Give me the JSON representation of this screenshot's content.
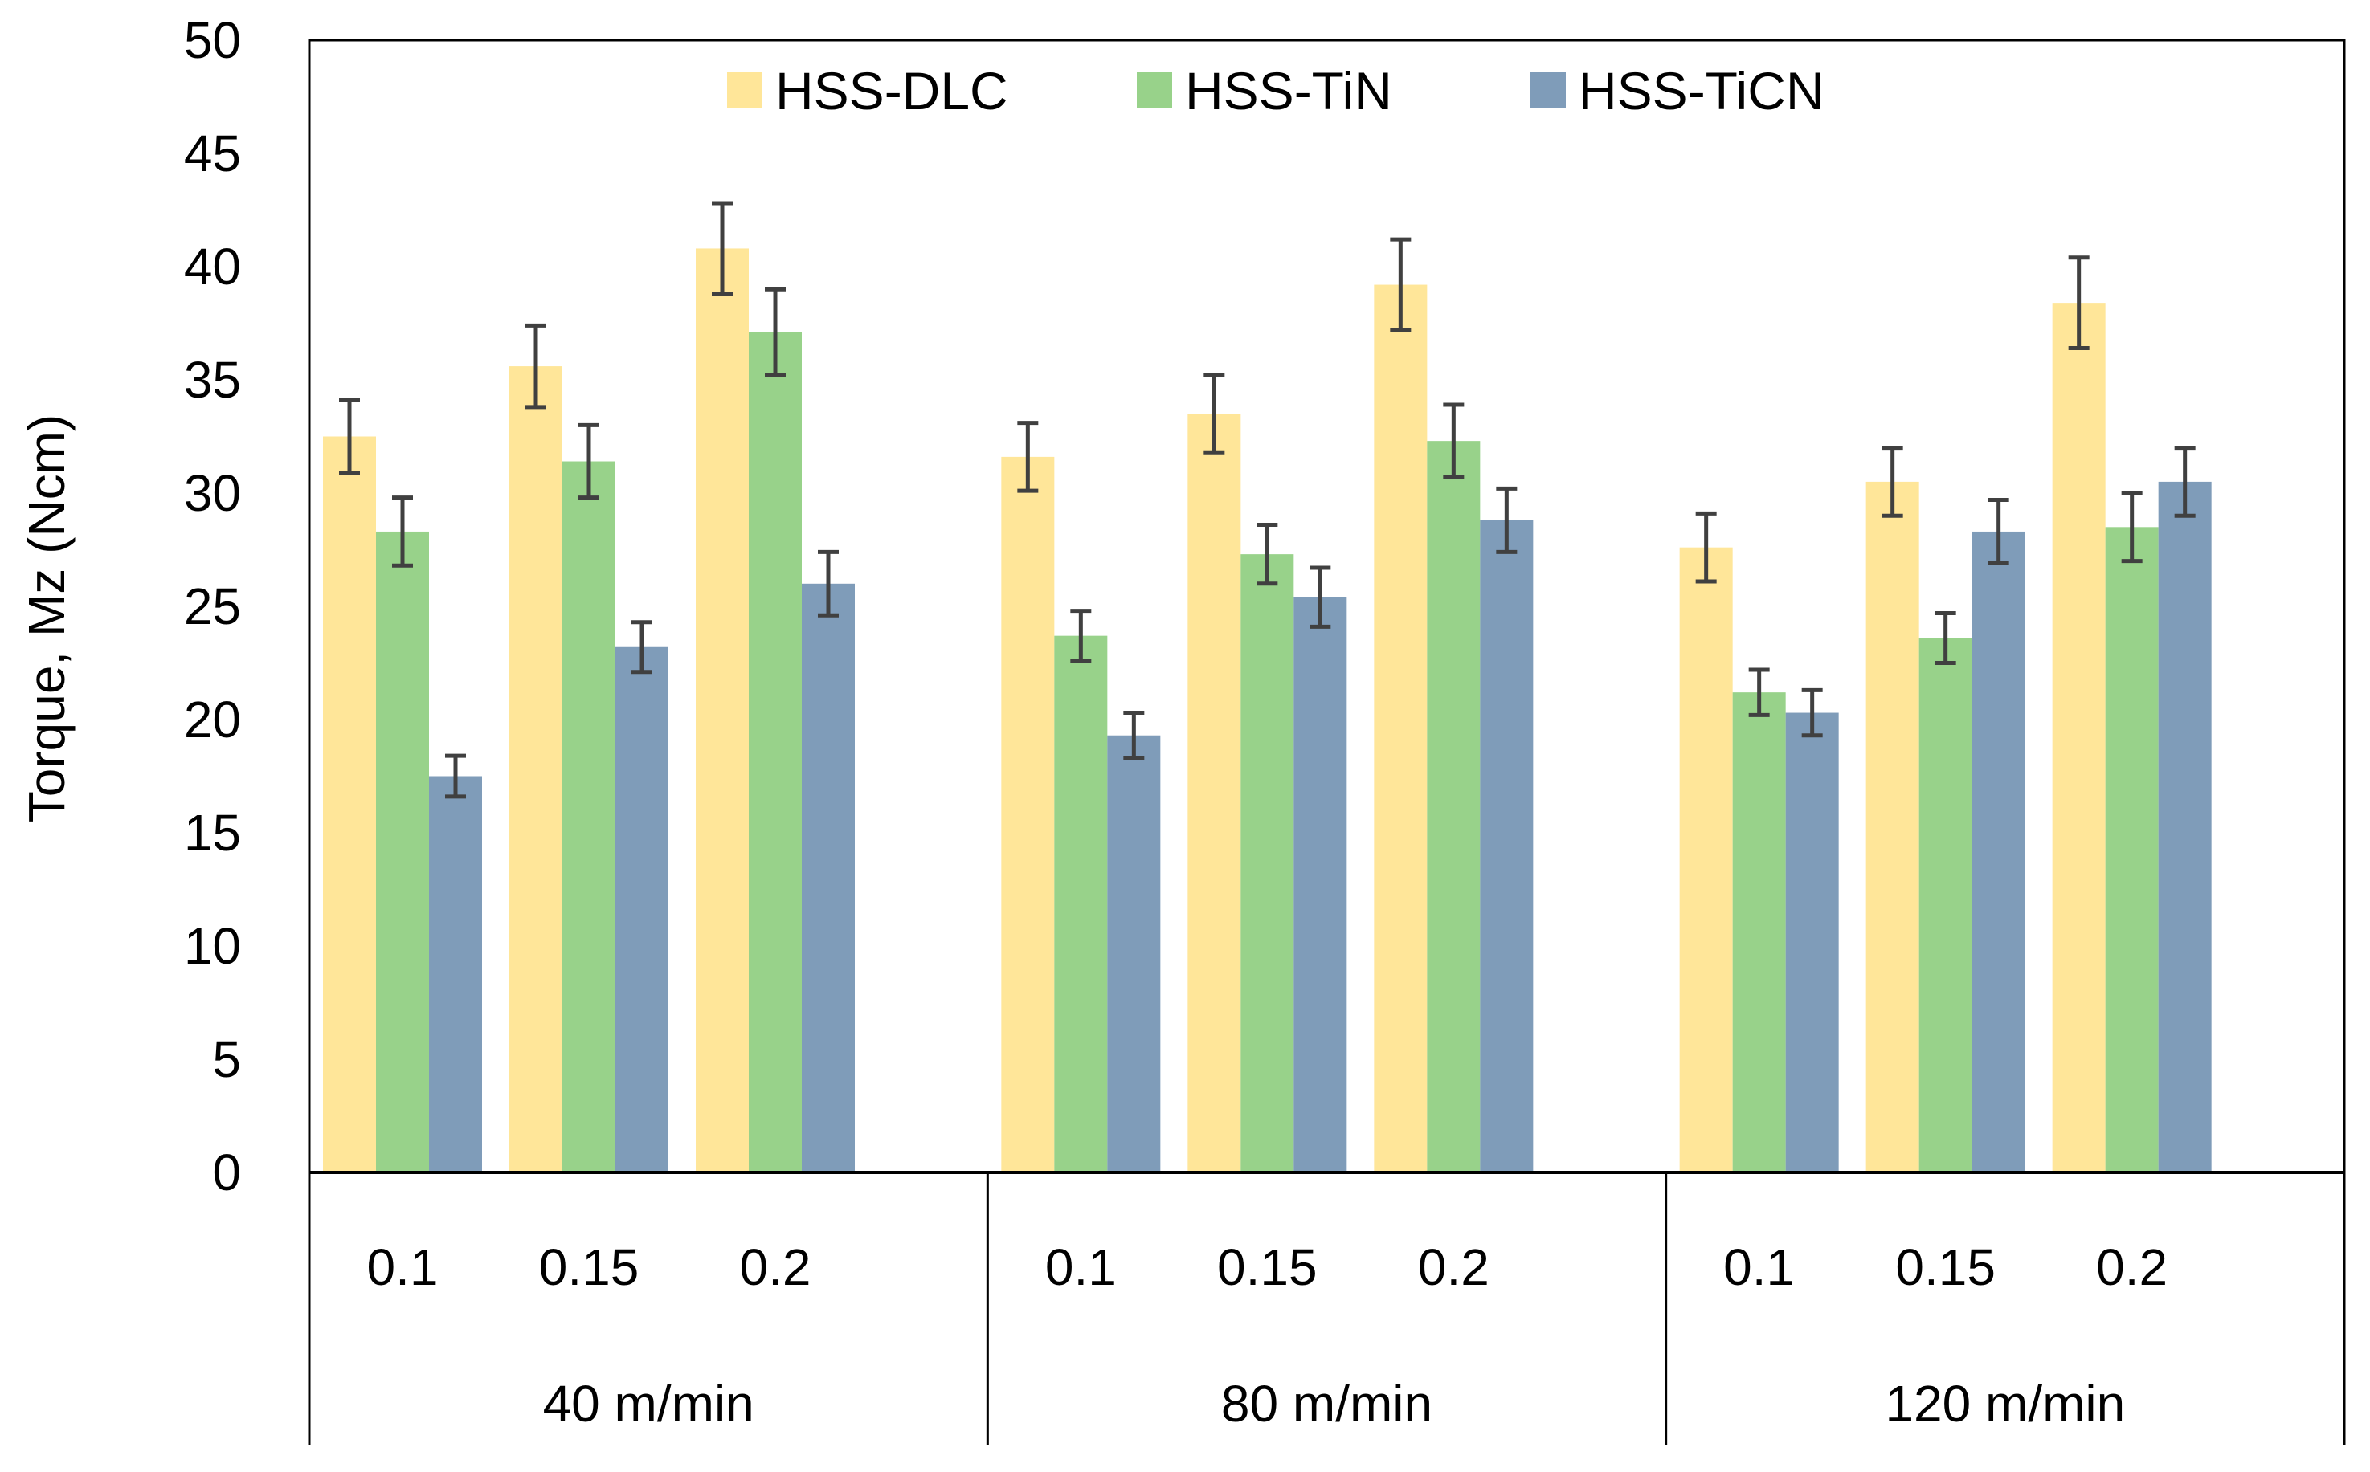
{
  "chart_data": {
    "type": "bar",
    "ylabel": "Torque, Mz  (Ncm)",
    "ylim": [
      0,
      50
    ],
    "yticks": [
      "0",
      "5",
      "10",
      "15",
      "20",
      "25",
      "30",
      "35",
      "40",
      "45",
      "50"
    ],
    "groups": [
      {
        "label": "40 m/min",
        "categories": [
          "0.1",
          "0.15",
          "0.2"
        ]
      },
      {
        "label": "80 m/min",
        "categories": [
          "0.1",
          "0.15",
          "0.2"
        ]
      },
      {
        "label": "120 m/min",
        "categories": [
          "0.1",
          "0.15",
          "0.2"
        ]
      }
    ],
    "series": [
      {
        "name": "HSS-DLC",
        "color": "#FFE699",
        "values": [
          32.5,
          35.6,
          40.8,
          31.6,
          33.5,
          39.2,
          27.6,
          30.5,
          38.4
        ],
        "errors": [
          1.6,
          1.8,
          2.0,
          1.5,
          1.7,
          2.0,
          1.5,
          1.5,
          2.0
        ]
      },
      {
        "name": "HSS-TiN",
        "color": "#98D28A",
        "values": [
          28.3,
          31.4,
          37.1,
          23.7,
          27.3,
          32.3,
          21.2,
          23.6,
          28.5
        ],
        "errors": [
          1.5,
          1.6,
          1.9,
          1.1,
          1.3,
          1.6,
          1.0,
          1.1,
          1.5
        ]
      },
      {
        "name": "HSS-TiCN",
        "color": "#7F9CB9",
        "values": [
          17.5,
          23.2,
          26.0,
          19.3,
          25.4,
          28.8,
          20.3,
          28.3,
          30.5
        ],
        "errors": [
          0.9,
          1.1,
          1.4,
          1.0,
          1.3,
          1.4,
          1.0,
          1.4,
          1.5
        ]
      }
    ],
    "error_bar_color": "#404040",
    "grid": false,
    "legend_position": "top-center"
  }
}
